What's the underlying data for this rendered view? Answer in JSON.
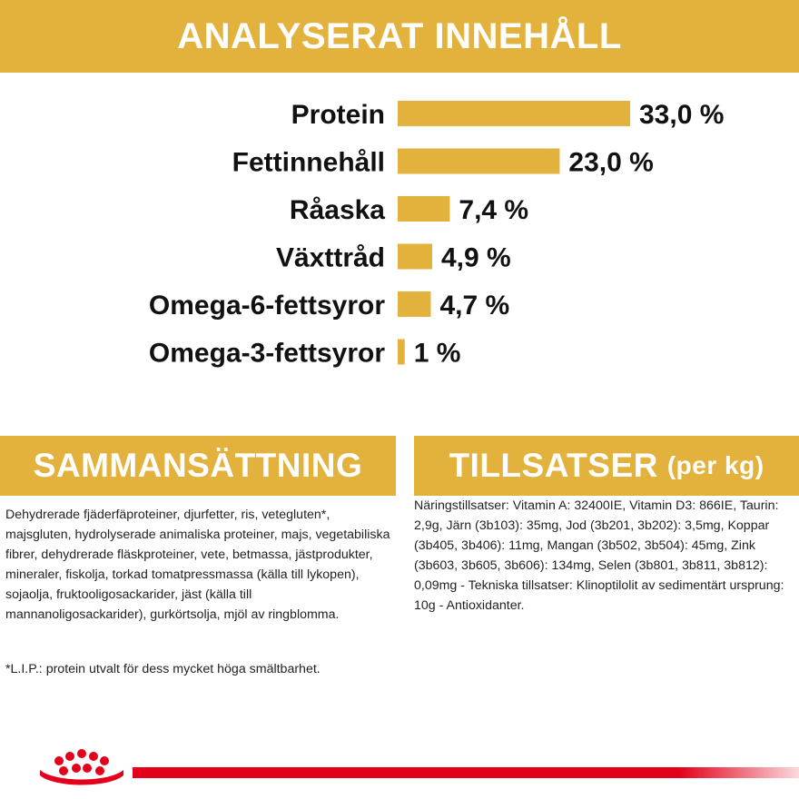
{
  "headers": {
    "analyzed_content": "ANALYSERAT INNEHÅLL",
    "composition": "SAMMANSÄTTNING",
    "additives_main": "TILLSATSER",
    "additives_sub": "(per kg)"
  },
  "chart_data": {
    "type": "bar",
    "orientation": "horizontal",
    "title": "ANALYSERAT INNEHÅLL",
    "categories": [
      "Protein",
      "Fettinnehåll",
      "Råaska",
      "Växttråd",
      "Omega-6-fettsyror",
      "Omega-3-fettsyror"
    ],
    "values": [
      33.0,
      23.0,
      7.4,
      4.9,
      4.7,
      1
    ],
    "value_labels": [
      "33,0 %",
      "23,0 %",
      "7,4 %",
      "4,9 %",
      "4,7 %",
      "1 %"
    ],
    "unit": "%",
    "grid": false,
    "legend": "none",
    "bar_color": "#e3b23c"
  },
  "composition": {
    "text": "Dehydrerade fjäderfäproteiner, djurfetter, ris, vetegluten*, majsgluten, hydrolyserade animaliska proteiner, majs, vegetabiliska fibrer, dehydrerade fläskproteiner, vete, betmassa, jästprodukter, mineraler, fiskolja, torkad tomatpressmassa (källa till lykopen), sojaolja, fruktooligosackarider, jäst (källa till mannanoligosackarider), gurkörtsolja, mjöl av ringblomma.",
    "footnote": "*L.I.P.: protein utvalt för dess mycket höga smältbarhet."
  },
  "additives": {
    "text": "Näringstillsatser: Vitamin A: 32400IE, Vitamin D3: 866IE, Taurin: 2,9g, Järn (3b103): 35mg, Jod (3b201, 3b202): 3,5mg, Koppar (3b405, 3b406): 11mg, Mangan (3b502, 3b504): 45mg, Zink (3b603, 3b605, 3b606): 134mg, Selen (3b801, 3b811, 3b812): 0,09mg - Tekniska tillsatser: Klinoptilolit av sedimentärt ursprung: 10g - Antioxidanter."
  },
  "colors": {
    "accent": "#e3b23c",
    "brand_red": "#e2001a",
    "text": "#222222"
  },
  "icons": {
    "logo": "crown-logo-icon"
  }
}
